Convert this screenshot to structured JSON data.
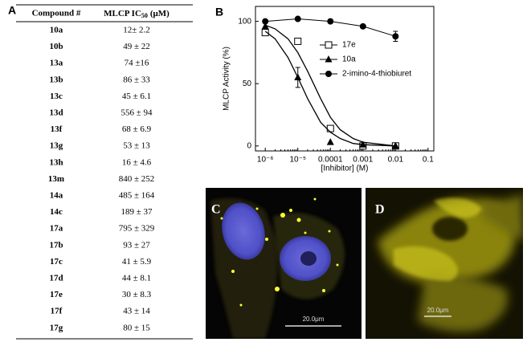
{
  "panel_a": {
    "label": "A",
    "table": {
      "header": {
        "compound": "Compound #",
        "ic50": "MLCP IC",
        "ic50_sub": "50",
        "ic50_unit": "(μM)"
      },
      "rows": [
        [
          "10a",
          "12± 2.2"
        ],
        [
          "10b",
          "49 ± 22"
        ],
        [
          "13a",
          "74 ±16"
        ],
        [
          "13b",
          "86 ± 33"
        ],
        [
          "13c",
          "45 ± 6.1"
        ],
        [
          "13d",
          "556 ± 94"
        ],
        [
          "13f",
          "68 ± 6.9"
        ],
        [
          "13g",
          "53 ± 13"
        ],
        [
          "13h",
          "16 ± 4.6"
        ],
        [
          "13m",
          "840 ± 252"
        ],
        [
          "14a",
          "485 ± 164"
        ],
        [
          "14c",
          "189 ± 37"
        ],
        [
          "17a",
          "795 ± 329"
        ],
        [
          "17b",
          "93 ± 27"
        ],
        [
          "17c",
          "41 ± 5.9"
        ],
        [
          "17d",
          "44 ± 8.1"
        ],
        [
          "17e",
          "30 ± 8.3"
        ],
        [
          "17f",
          "43 ± 14"
        ],
        [
          "17g",
          "80 ± 15"
        ]
      ]
    }
  },
  "chart_data": {
    "type": "scatter",
    "panel_label": "B",
    "xlabel": "[Inhibitor] (M)",
    "ylabel": "MLCP Activity (%)",
    "x": [
      1e-06,
      1e-05,
      0.0001,
      0.001,
      0.01
    ],
    "xlog": true,
    "xlim": [
      5e-07,
      0.15
    ],
    "ylim": [
      -4,
      112
    ],
    "xticks": [
      {
        "value": 1e-06,
        "label": "10⁻⁶"
      },
      {
        "value": 1e-05,
        "label": "10⁻⁵"
      },
      0.0001,
      0.001,
      0.01,
      0.1
    ],
    "yticks": [
      0,
      50,
      100
    ],
    "legend": "upper right",
    "fit_x": [
      1e-06,
      2e-06,
      5e-06,
      1e-05,
      2e-05,
      5e-05,
      0.0001,
      0.0002,
      0.0005,
      0.001,
      0.01
    ],
    "series": [
      {
        "name": "17e",
        "color": "#000000",
        "marker": "open-square",
        "values": [
          91,
          84,
          14,
          0,
          0
        ],
        "errors": [
          null,
          null,
          null,
          null,
          null
        ],
        "fit": [
          97,
          94,
          86,
          75,
          60,
          38,
          23,
          13,
          6,
          3,
          0
        ]
      },
      {
        "name": "10a",
        "color": "#000000",
        "marker": "triangle",
        "values": [
          96,
          55,
          3,
          1,
          0
        ],
        "errors": [
          null,
          8,
          null,
          null,
          null
        ],
        "fit": [
          92,
          86,
          71,
          55,
          38,
          19,
          11,
          6,
          2,
          1,
          0
        ]
      },
      {
        "name": "2-imino-4-thiobiuret",
        "color": "#000000",
        "marker": "circle",
        "values": [
          100,
          102,
          100,
          96,
          88
        ],
        "errors": [
          null,
          null,
          null,
          null,
          4
        ]
      }
    ]
  },
  "panel_c": {
    "label": "C",
    "scale_bar": "20.0μm"
  },
  "panel_d": {
    "label": "D",
    "scale_bar": "20.0μm"
  }
}
